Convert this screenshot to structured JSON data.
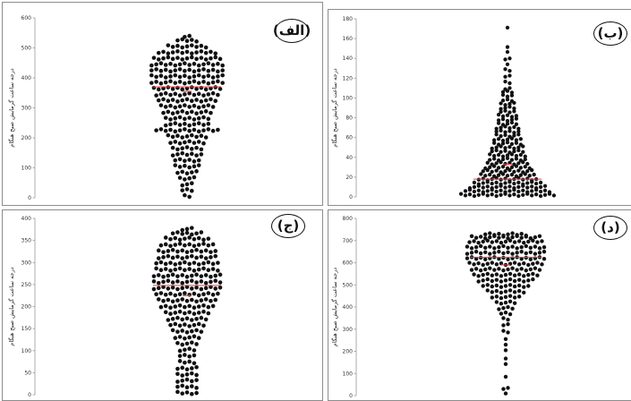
{
  "chart_data": [
    {
      "type": "scatter",
      "panel_label": "(الف)",
      "ylabel": "درجه ساعت گرمایش صبح هنگام",
      "ylim": [
        0,
        600
      ],
      "yticks": [
        "0",
        "100",
        "200",
        "300",
        "400",
        "500",
        "600"
      ],
      "mean": 370,
      "median": 355,
      "distribution": [
        {
          "y": 5,
          "count": 2
        },
        {
          "y": 25,
          "count": 3
        },
        {
          "y": 45,
          "count": 3
        },
        {
          "y": 65,
          "count": 4
        },
        {
          "y": 85,
          "count": 5
        },
        {
          "y": 105,
          "count": 6
        },
        {
          "y": 125,
          "count": 6
        },
        {
          "y": 145,
          "count": 7
        },
        {
          "y": 165,
          "count": 7
        },
        {
          "y": 185,
          "count": 8
        },
        {
          "y": 205,
          "count": 9
        },
        {
          "y": 225,
          "count": 14
        },
        {
          "y": 245,
          "count": 10
        },
        {
          "y": 265,
          "count": 10
        },
        {
          "y": 285,
          "count": 11
        },
        {
          "y": 305,
          "count": 12
        },
        {
          "y": 325,
          "count": 13
        },
        {
          "y": 345,
          "count": 14
        },
        {
          "y": 365,
          "count": 15
        },
        {
          "y": 385,
          "count": 16
        },
        {
          "y": 405,
          "count": 16
        },
        {
          "y": 425,
          "count": 16
        },
        {
          "y": 445,
          "count": 16
        },
        {
          "y": 465,
          "count": 15
        },
        {
          "y": 485,
          "count": 13
        },
        {
          "y": 505,
          "count": 9
        },
        {
          "y": 525,
          "count": 5
        },
        {
          "y": 540,
          "count": 2
        }
      ],
      "colors": {
        "points": "#111111",
        "mean_line": "#e8404a",
        "median_marker": "#e8404a"
      }
    },
    {
      "type": "scatter",
      "panel_label": "(ب)",
      "ylabel": "درجه ساعت گرمایش صبح هنگام",
      "ylim": [
        0,
        180
      ],
      "yticks": [
        "0",
        "20",
        "40",
        "60",
        "80",
        "100",
        "120",
        "140",
        "160",
        "180"
      ],
      "mean": 18,
      "median": 33,
      "distribution": [
        {
          "y": 2,
          "count": 22
        },
        {
          "y": 6,
          "count": 20
        },
        {
          "y": 10,
          "count": 18
        },
        {
          "y": 14,
          "count": 16
        },
        {
          "y": 18,
          "count": 14
        },
        {
          "y": 22,
          "count": 13
        },
        {
          "y": 26,
          "count": 12
        },
        {
          "y": 30,
          "count": 11
        },
        {
          "y": 34,
          "count": 10
        },
        {
          "y": 38,
          "count": 9
        },
        {
          "y": 42,
          "count": 9
        },
        {
          "y": 46,
          "count": 8
        },
        {
          "y": 50,
          "count": 8
        },
        {
          "y": 54,
          "count": 7
        },
        {
          "y": 58,
          "count": 7
        },
        {
          "y": 62,
          "count": 6
        },
        {
          "y": 66,
          "count": 6
        },
        {
          "y": 70,
          "count": 6
        },
        {
          "y": 74,
          "count": 5
        },
        {
          "y": 78,
          "count": 5
        },
        {
          "y": 82,
          "count": 5
        },
        {
          "y": 86,
          "count": 4
        },
        {
          "y": 90,
          "count": 4
        },
        {
          "y": 94,
          "count": 4
        },
        {
          "y": 98,
          "count": 3
        },
        {
          "y": 102,
          "count": 3
        },
        {
          "y": 106,
          "count": 3
        },
        {
          "y": 110,
          "count": 2
        },
        {
          "y": 116,
          "count": 2
        },
        {
          "y": 122,
          "count": 2
        },
        {
          "y": 128,
          "count": 2
        },
        {
          "y": 134,
          "count": 1
        },
        {
          "y": 140,
          "count": 2
        },
        {
          "y": 146,
          "count": 1
        },
        {
          "y": 152,
          "count": 1
        },
        {
          "y": 170,
          "count": 1
        }
      ],
      "colors": {
        "points": "#111111",
        "mean_line": "#e8404a",
        "median_marker": "#e8404a"
      }
    },
    {
      "type": "scatter",
      "panel_label": "(ج)",
      "ylabel": "درجه ساعت گرمایش صبح هنگام",
      "ylim": [
        0,
        400
      ],
      "yticks": [
        "0",
        "50",
        "100",
        "150",
        "200",
        "250",
        "300",
        "350",
        "400"
      ],
      "mean": 248,
      "median": 225,
      "distribution": [
        {
          "y": 4,
          "count": 5
        },
        {
          "y": 18,
          "count": 5
        },
        {
          "y": 32,
          "count": 5
        },
        {
          "y": 46,
          "count": 5
        },
        {
          "y": 60,
          "count": 5
        },
        {
          "y": 74,
          "count": 4
        },
        {
          "y": 88,
          "count": 4
        },
        {
          "y": 102,
          "count": 4
        },
        {
          "y": 116,
          "count": 5
        },
        {
          "y": 130,
          "count": 6
        },
        {
          "y": 144,
          "count": 7
        },
        {
          "y": 158,
          "count": 8
        },
        {
          "y": 172,
          "count": 9
        },
        {
          "y": 186,
          "count": 10
        },
        {
          "y": 200,
          "count": 12
        },
        {
          "y": 214,
          "count": 13
        },
        {
          "y": 228,
          "count": 14
        },
        {
          "y": 242,
          "count": 15
        },
        {
          "y": 256,
          "count": 15
        },
        {
          "y": 270,
          "count": 15
        },
        {
          "y": 284,
          "count": 14
        },
        {
          "y": 298,
          "count": 14
        },
        {
          "y": 312,
          "count": 13
        },
        {
          "y": 326,
          "count": 13
        },
        {
          "y": 340,
          "count": 12
        },
        {
          "y": 354,
          "count": 10
        },
        {
          "y": 366,
          "count": 7
        },
        {
          "y": 376,
          "count": 3
        }
      ],
      "colors": {
        "points": "#111111",
        "mean_line": "#e8404a",
        "median_marker": "#e8404a"
      }
    },
    {
      "type": "scatter",
      "panel_label": "(د)",
      "ylabel": "درجه ساعت گرمایش صبح هنگام",
      "ylim": [
        0,
        800
      ],
      "yticks": [
        "0",
        "100",
        "200",
        "300",
        "400",
        "500",
        "600",
        "700",
        "800"
      ],
      "mean": 625,
      "median": 590,
      "distribution": [
        {
          "y": 5,
          "count": 1
        },
        {
          "y": 30,
          "count": 2
        },
        {
          "y": 90,
          "count": 1
        },
        {
          "y": 140,
          "count": 1
        },
        {
          "y": 170,
          "count": 1
        },
        {
          "y": 200,
          "count": 1
        },
        {
          "y": 230,
          "count": 1
        },
        {
          "y": 260,
          "count": 1
        },
        {
          "y": 290,
          "count": 2
        },
        {
          "y": 320,
          "count": 2
        },
        {
          "y": 345,
          "count": 2
        },
        {
          "y": 370,
          "count": 3
        },
        {
          "y": 395,
          "count": 4
        },
        {
          "y": 420,
          "count": 5
        },
        {
          "y": 445,
          "count": 7
        },
        {
          "y": 470,
          "count": 9
        },
        {
          "y": 495,
          "count": 11
        },
        {
          "y": 520,
          "count": 13
        },
        {
          "y": 545,
          "count": 15
        },
        {
          "y": 570,
          "count": 16
        },
        {
          "y": 595,
          "count": 17
        },
        {
          "y": 620,
          "count": 18
        },
        {
          "y": 645,
          "count": 18
        },
        {
          "y": 670,
          "count": 18
        },
        {
          "y": 695,
          "count": 17
        },
        {
          "y": 715,
          "count": 16
        },
        {
          "y": 728,
          "count": 10
        }
      ],
      "colors": {
        "points": "#111111",
        "mean_line": "#e8404a",
        "median_marker": "#e8404a"
      }
    }
  ]
}
